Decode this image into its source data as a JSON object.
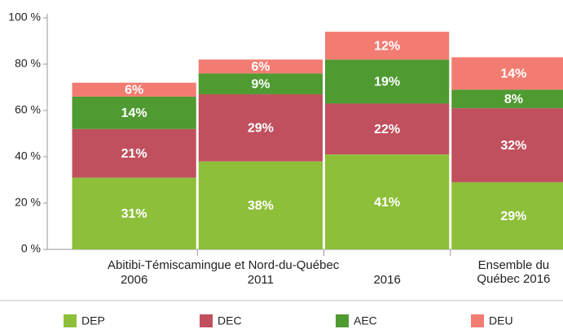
{
  "chart_data": {
    "type": "stacked_bar",
    "group_label": "Abitibi-Témiscamingue et Nord-du-Québec",
    "categories": [
      "2006",
      "2011",
      "2016",
      "Ensemble du Québec 2016"
    ],
    "series": [
      {
        "name": "DEP",
        "color": "#8dbf3a",
        "values": [
          31,
          38,
          41,
          29
        ],
        "value_labels": [
          "31%",
          "38%",
          "41%",
          "29%"
        ]
      },
      {
        "name": "DEC",
        "color": "#c1505e",
        "values": [
          21,
          29,
          22,
          32
        ],
        "value_labels": [
          "21%",
          "29%",
          "22%",
          "32%"
        ]
      },
      {
        "name": "AEC",
        "color": "#4f9a31",
        "values": [
          14,
          9,
          19,
          8
        ],
        "value_labels": [
          "14%",
          "9%",
          "19%",
          "8%"
        ]
      },
      {
        "name": "DEU",
        "color": "#f27c72",
        "values": [
          6,
          6,
          12,
          14
        ],
        "value_labels": [
          "6%",
          "6%",
          "12%",
          "14%"
        ]
      }
    ],
    "ylim": [
      0,
      100
    ],
    "yticks": [
      {
        "value": 0,
        "label": "0 %"
      },
      {
        "value": 20,
        "label": "20 %"
      },
      {
        "value": 40,
        "label": "40 %"
      },
      {
        "value": 60,
        "label": "60 %"
      },
      {
        "value": 80,
        "label": "80 %"
      },
      {
        "value": 100,
        "label": "100 %"
      }
    ],
    "legend": "bottom"
  }
}
